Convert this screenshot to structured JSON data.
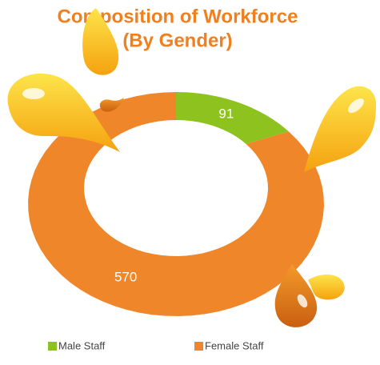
{
  "chart_data": {
    "type": "donut",
    "title": "Composition of Workforce",
    "subtitle": "(By Gender)",
    "categories": [
      "Male Staff",
      "Female Staff"
    ],
    "values": [
      91,
      570
    ],
    "colors": [
      "#8dc21f",
      "#f0862a"
    ],
    "legend": "bottom"
  }
}
